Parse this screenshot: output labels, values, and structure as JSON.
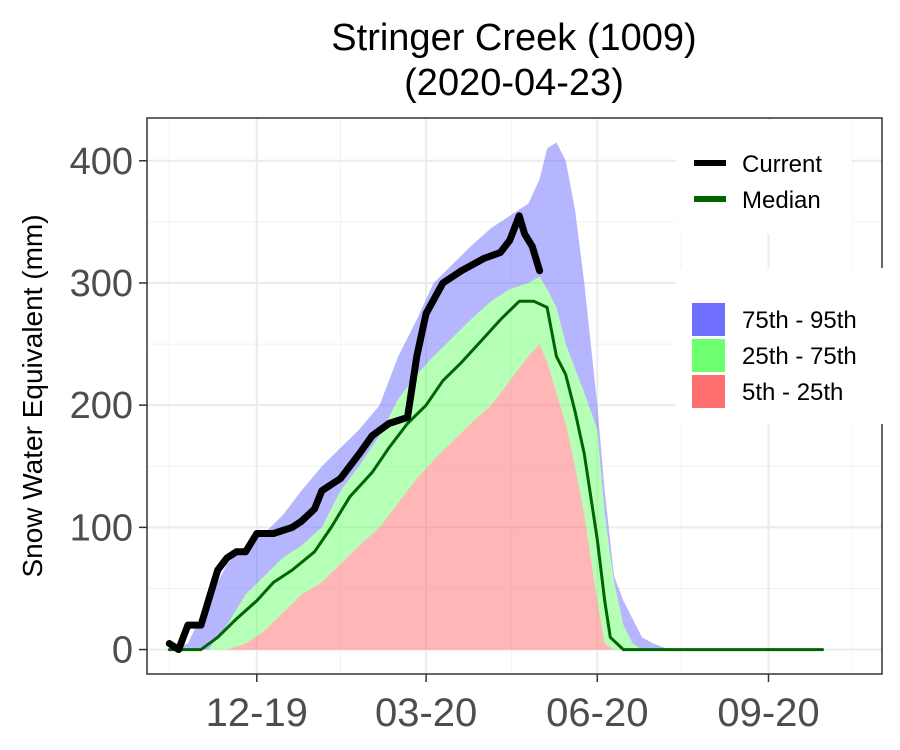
{
  "chart_data": {
    "type": "area",
    "title": "Stringer Creek (1009)",
    "subtitle": "(2020-04-23)",
    "xlabel": "",
    "ylabel": "Snow Water Equivalent (mm)",
    "x_ticks": [
      "12-19",
      "03-20",
      "06-20",
      "09-20"
    ],
    "y_ticks": [
      "0",
      "100",
      "200",
      "300",
      "400"
    ],
    "ylim": [
      -20,
      435
    ],
    "grid": true,
    "legend_position": "right",
    "bands": [
      {
        "name": "75th - 95th",
        "color": "#6e6eff",
        "x": [
          "2019-10-15",
          "2019-10-25",
          "2019-11-05",
          "2019-11-15",
          "2019-11-25",
          "2019-12-05",
          "2019-12-15",
          "2019-12-25",
          "2020-01-05",
          "2020-01-15",
          "2020-01-25",
          "2020-02-05",
          "2020-02-15",
          "2020-02-25",
          "2020-03-05",
          "2020-03-15",
          "2020-03-25",
          "2020-04-05",
          "2020-04-15",
          "2020-04-25",
          "2020-05-01",
          "2020-05-05",
          "2020-05-10",
          "2020-05-15",
          "2020-05-20",
          "2020-05-25",
          "2020-06-01",
          "2020-06-05",
          "2020-06-10",
          "2020-06-15",
          "2020-06-20",
          "2020-06-25",
          "2020-07-01",
          "2020-07-10"
        ],
        "low": [
          0,
          0,
          0,
          20,
          45,
          60,
          75,
          85,
          100,
          130,
          150,
          175,
          205,
          225,
          240,
          255,
          270,
          285,
          295,
          300,
          305,
          295,
          280,
          250,
          230,
          210,
          180,
          110,
          55,
          20,
          5,
          0,
          0,
          0
        ],
        "high": [
          0,
          5,
          40,
          70,
          85,
          95,
          110,
          130,
          150,
          165,
          180,
          200,
          240,
          270,
          300,
          315,
          330,
          345,
          355,
          365,
          385,
          410,
          415,
          400,
          360,
          300,
          200,
          130,
          60,
          40,
          25,
          10,
          5,
          0
        ]
      },
      {
        "name": "25th - 75th",
        "color": "#6eff6e",
        "x": [
          "2019-10-15",
          "2019-10-25",
          "2019-11-05",
          "2019-11-15",
          "2019-11-25",
          "2019-12-05",
          "2019-12-15",
          "2019-12-25",
          "2020-01-05",
          "2020-01-15",
          "2020-01-25",
          "2020-02-05",
          "2020-02-15",
          "2020-02-25",
          "2020-03-05",
          "2020-03-15",
          "2020-03-25",
          "2020-04-05",
          "2020-04-15",
          "2020-04-25",
          "2020-05-01",
          "2020-05-05",
          "2020-05-10",
          "2020-05-15",
          "2020-05-20",
          "2020-05-25",
          "2020-06-01",
          "2020-06-05",
          "2020-06-10",
          "2020-06-15",
          "2020-06-20",
          "2020-06-25",
          "2020-07-01",
          "2020-07-10"
        ],
        "low": [
          0,
          0,
          0,
          0,
          5,
          15,
          30,
          45,
          55,
          70,
          85,
          100,
          120,
          140,
          155,
          170,
          185,
          200,
          220,
          240,
          250,
          235,
          210,
          185,
          150,
          110,
          40,
          5,
          0,
          0,
          0,
          0,
          0,
          0
        ],
        "high": [
          0,
          0,
          0,
          20,
          45,
          60,
          75,
          85,
          100,
          130,
          150,
          175,
          205,
          225,
          240,
          255,
          270,
          285,
          295,
          300,
          305,
          295,
          280,
          250,
          230,
          210,
          180,
          110,
          55,
          20,
          5,
          0,
          0,
          0
        ]
      },
      {
        "name": "5th - 25th",
        "color": "#ff6e6e",
        "x": [
          "2019-10-15",
          "2019-10-25",
          "2019-11-05",
          "2019-11-15",
          "2019-11-25",
          "2019-12-05",
          "2019-12-15",
          "2019-12-25",
          "2020-01-05",
          "2020-01-15",
          "2020-01-25",
          "2020-02-05",
          "2020-02-15",
          "2020-02-25",
          "2020-03-05",
          "2020-03-15",
          "2020-03-25",
          "2020-04-05",
          "2020-04-15",
          "2020-04-25",
          "2020-05-01",
          "2020-05-05",
          "2020-05-10",
          "2020-05-15",
          "2020-05-20",
          "2020-05-25",
          "2020-06-01",
          "2020-06-05",
          "2020-06-10",
          "2020-06-15",
          "2020-06-20",
          "2020-06-25",
          "2020-07-01",
          "2020-07-10"
        ],
        "low": [
          0,
          0,
          0,
          0,
          0,
          0,
          0,
          0,
          0,
          0,
          0,
          0,
          0,
          0,
          0,
          0,
          0,
          0,
          0,
          0,
          0,
          0,
          0,
          0,
          0,
          0,
          0,
          0,
          0,
          0,
          0,
          0,
          0,
          0
        ],
        "high": [
          0,
          0,
          0,
          0,
          5,
          15,
          30,
          45,
          55,
          70,
          85,
          100,
          120,
          140,
          155,
          170,
          185,
          200,
          220,
          240,
          250,
          235,
          210,
          185,
          150,
          110,
          40,
          5,
          0,
          0,
          0,
          0,
          0,
          0
        ]
      }
    ],
    "series": [
      {
        "name": "Median",
        "color": "#006400",
        "x": [
          "2019-10-15",
          "2019-11-01",
          "2019-11-10",
          "2019-11-20",
          "2019-12-01",
          "2019-12-10",
          "2019-12-20",
          "2020-01-01",
          "2020-01-10",
          "2020-01-20",
          "2020-02-01",
          "2020-02-10",
          "2020-02-20",
          "2020-03-01",
          "2020-03-10",
          "2020-03-20",
          "2020-04-01",
          "2020-04-10",
          "2020-04-20",
          "2020-04-28",
          "2020-05-05",
          "2020-05-10",
          "2020-05-15",
          "2020-05-20",
          "2020-05-25",
          "2020-06-01",
          "2020-06-05",
          "2020-06-08",
          "2020-06-15",
          "2020-07-01",
          "2020-08-01",
          "2020-09-01",
          "2020-09-30"
        ],
        "y": [
          0,
          0,
          10,
          25,
          40,
          55,
          65,
          80,
          100,
          125,
          145,
          165,
          185,
          200,
          220,
          235,
          255,
          270,
          285,
          285,
          280,
          240,
          225,
          195,
          160,
          90,
          40,
          10,
          0,
          0,
          0,
          0,
          0
        ]
      },
      {
        "name": "Current",
        "color": "#000000",
        "x": [
          "2019-10-15",
          "2019-10-20",
          "2019-10-25",
          "2019-11-01",
          "2019-11-05",
          "2019-11-10",
          "2019-11-15",
          "2019-11-20",
          "2019-11-25",
          "2019-12-01",
          "2019-12-10",
          "2019-12-20",
          "2019-12-25",
          "2020-01-01",
          "2020-01-05",
          "2020-01-15",
          "2020-01-25",
          "2020-02-01",
          "2020-02-10",
          "2020-02-20",
          "2020-02-25",
          "2020-03-01",
          "2020-03-10",
          "2020-03-20",
          "2020-04-01",
          "2020-04-10",
          "2020-04-15",
          "2020-04-20",
          "2020-04-23",
          "2020-04-27",
          "2020-05-01"
        ],
        "y": [
          5,
          0,
          20,
          20,
          40,
          65,
          75,
          80,
          80,
          95,
          95,
          100,
          105,
          115,
          130,
          140,
          160,
          175,
          185,
          190,
          240,
          275,
          300,
          310,
          320,
          325,
          335,
          355,
          340,
          330,
          310
        ]
      }
    ]
  }
}
